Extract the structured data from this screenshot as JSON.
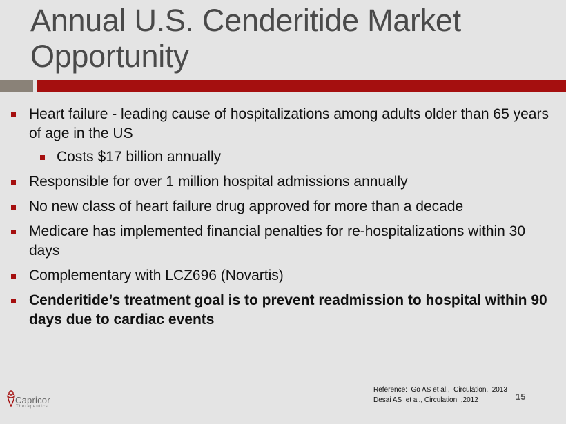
{
  "slide": {
    "title": "Annual U.S. Cenderitide Market Opportunity",
    "bullets": [
      "Heart failure - leading cause of hospitalizations among adults older than 65 years of age in the US",
      "Costs $17 billion annually",
      "Responsible for over 1 million hospital admissions annually",
      "No new class of heart failure drug approved for more than a decade",
      "Medicare has implemented financial penalties for re-hospitalizations within 30 days",
      "Complementary with LCZ696 (Novartis)",
      "Cenderitide’s treatment goal is to prevent readmission to hospital within 90 days due to cardiac events"
    ],
    "reference_lines": [
      "Reference:  Go AS et al.,  Circulation,  2013",
      "Desai AS  et al., Circulation  ,2012"
    ],
    "page_number": "15"
  },
  "logo": {
    "name": "Capricor",
    "subtitle": "Therapeutics"
  },
  "colors": {
    "accent_red": "#a50f0f",
    "accent_gray": "#8a8278",
    "background": "#e4e4e4"
  }
}
